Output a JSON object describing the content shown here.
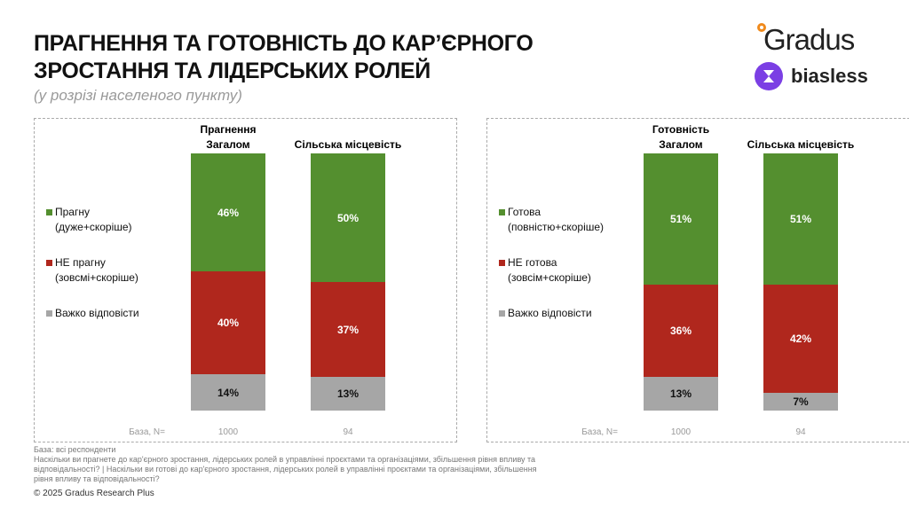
{
  "header": {
    "title": [
      "ПРАГНЕННЯ ТА ГОТОВНІСТЬ ДО КАР’ЄРНОГО",
      "ЗРОСТАННЯ ТА ЛІДЕРСЬКИХ РОЛЕЙ"
    ],
    "subtitle": "(у розрізі населеного пункту)"
  },
  "logos": {
    "gradus": "Gradus",
    "biasless": "biasless"
  },
  "chart_data": [
    {
      "type": "stacked_bar",
      "title": "Прагнення",
      "categories": [
        "Загалом",
        "Сільська місцевість"
      ],
      "series": [
        {
          "name": "Прагну\n(дуже+скоріше)",
          "color": "#548f2f",
          "values": [
            46,
            50
          ],
          "value_labels": [
            "46%",
            "50%"
          ]
        },
        {
          "name": "НЕ прагну\n(зовсмі+скоріше)",
          "color": "#b0271d",
          "values": [
            40,
            37
          ],
          "value_labels": [
            "40%",
            "37%"
          ]
        },
        {
          "name": "Важко відповісти",
          "color": "#a6a6a6",
          "values": [
            14,
            13
          ],
          "value_labels": [
            "14%",
            "13%"
          ]
        }
      ],
      "base_label": "База, N=",
      "base_values": [
        1000,
        94
      ]
    },
    {
      "type": "stacked_bar",
      "title": "Готовність",
      "categories": [
        "Загалом",
        "Сільська місцевість"
      ],
      "series": [
        {
          "name": "Готова\n(повністю+скоріше)",
          "color": "#548f2f",
          "values": [
            51,
            51
          ],
          "value_labels": [
            "51%",
            "51%"
          ]
        },
        {
          "name": "НЕ готова\n(зовсім+скоріше)",
          "color": "#b0271d",
          "values": [
            36,
            42
          ],
          "value_labels": [
            "36%",
            "42%"
          ]
        },
        {
          "name": "Важко відповісти",
          "color": "#a6a6a6",
          "values": [
            13,
            7
          ],
          "value_labels": [
            "13%",
            "7%"
          ]
        }
      ],
      "base_label": "База, N=",
      "base_values": [
        1000,
        94
      ]
    }
  ],
  "footnotes": [
    "База: всі респонденти",
    "Наскільки ви прагнете до кар'єрного зростання, лідерських ролей в управлінні проєктами та організаціями, збільшення рівня впливу та",
    "відповідальності? | Наскільки ви готові до кар'єрного зростання, лідерських ролей в управлінні проєктами та організаціями, збільшення",
    "рівня впливу та відповідальності?"
  ],
  "copyright": "© 2025 Gradus Research Plus"
}
